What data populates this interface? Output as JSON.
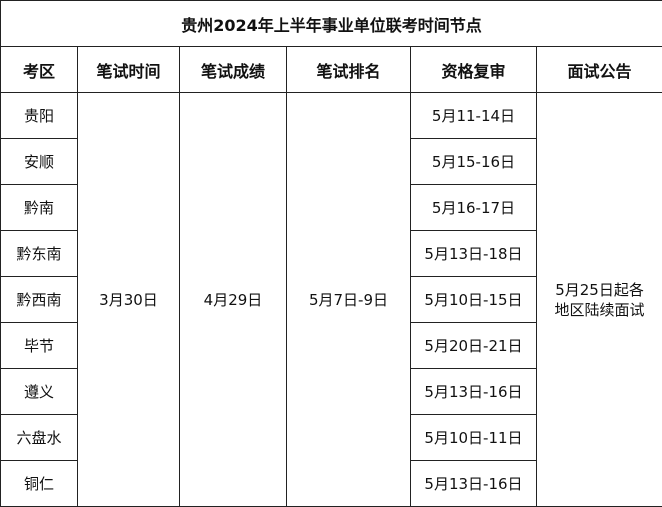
{
  "title": "贵州2024年上半年事业单位联考时间节点",
  "headers": [
    "考区",
    "笔试时间",
    "笔试成绩",
    "笔试排名",
    "资格复审",
    "面试公告"
  ],
  "rows": [
    {
      "region": "贵阳",
      "review": "5月11-14日"
    },
    {
      "region": "安顺",
      "review": "5月15-16日"
    },
    {
      "region": "黔南",
      "review": "5月16-17日"
    },
    {
      "region": "黔东南",
      "review": "5月13日-18日"
    },
    {
      "region": "黔西南",
      "review": "5月10日-15日"
    },
    {
      "region": "毕节",
      "review": "5月20日-21日"
    },
    {
      "region": "遵义",
      "review": "5月13日-16日"
    },
    {
      "region": "六盘水",
      "review": "5月10日-11日"
    },
    {
      "region": "铜仁",
      "review": "5月13日-16日"
    }
  ],
  "shared": {
    "exam_date": "3月30日",
    "score_date": "4月29日",
    "ranking_date": "5月7日-9日",
    "interview_notice": "5月25日起各地区陆续面试"
  }
}
